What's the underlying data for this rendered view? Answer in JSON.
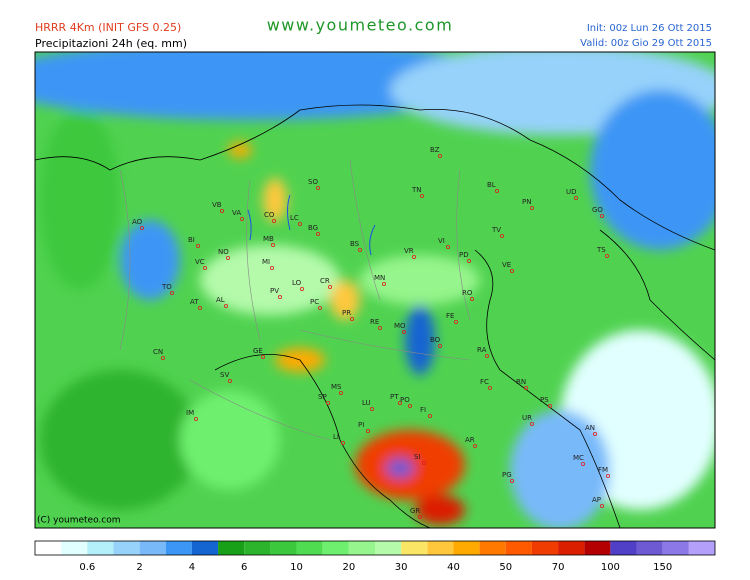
{
  "header": {
    "model": "HRRR 4Km (INIT GFS 0.25)",
    "product": "Precipitazioni 24h (eq. mm)",
    "site": "www.youmeteo.com",
    "init": "Init: 00z Lun  26 Ott 2015",
    "valid": "Valid: 00z Gio  29 Ott 2015"
  },
  "cities": [
    "AO",
    "VB",
    "VA",
    "CO",
    "SO",
    "LC",
    "BG",
    "MB",
    "MI",
    "NO",
    "BI",
    "VC",
    "TO",
    "AT",
    "AL",
    "PV",
    "LO",
    "CR",
    "PC",
    "BS",
    "TN",
    "BZ",
    "BL",
    "UD",
    "PN",
    "GO",
    "TS",
    "TV",
    "VI",
    "VR",
    "PD",
    "VE",
    "MN",
    "RO",
    "FE",
    "PR",
    "RE",
    "MO",
    "BO",
    "RA",
    "FC",
    "RN",
    "PS",
    "UR",
    "AN",
    "MC",
    "FM",
    "AP",
    "PG",
    "AR",
    "SI",
    "GR",
    "FI",
    "PT",
    "PO",
    "LU",
    "PI",
    "LI",
    "MS",
    "SP",
    "GE",
    "SV",
    "IM",
    "CN"
  ],
  "legend": {
    "ticks": [
      0.6,
      2,
      4,
      6,
      10,
      20,
      30,
      40,
      50,
      70,
      100,
      150
    ],
    "colors": [
      "#ffffff",
      "#e1ffff",
      "#b4f0fa",
      "#96d2fa",
      "#78b9fa",
      "#3c96f5",
      "#1464d2",
      "#19a019",
      "#2db42d",
      "#3cc83c",
      "#50dc50",
      "#6ef06e",
      "#96f58c",
      "#b4faaa",
      "#fae664",
      "#ffc83c",
      "#ffaa00",
      "#ff7800",
      "#ff5a00",
      "#f03c00",
      "#dc1e00",
      "#b40000",
      "#5040c8",
      "#6e5ad2",
      "#8c78e6",
      "#b4a0fa"
    ]
  },
  "copyright": "(C) youmeteo.com"
}
